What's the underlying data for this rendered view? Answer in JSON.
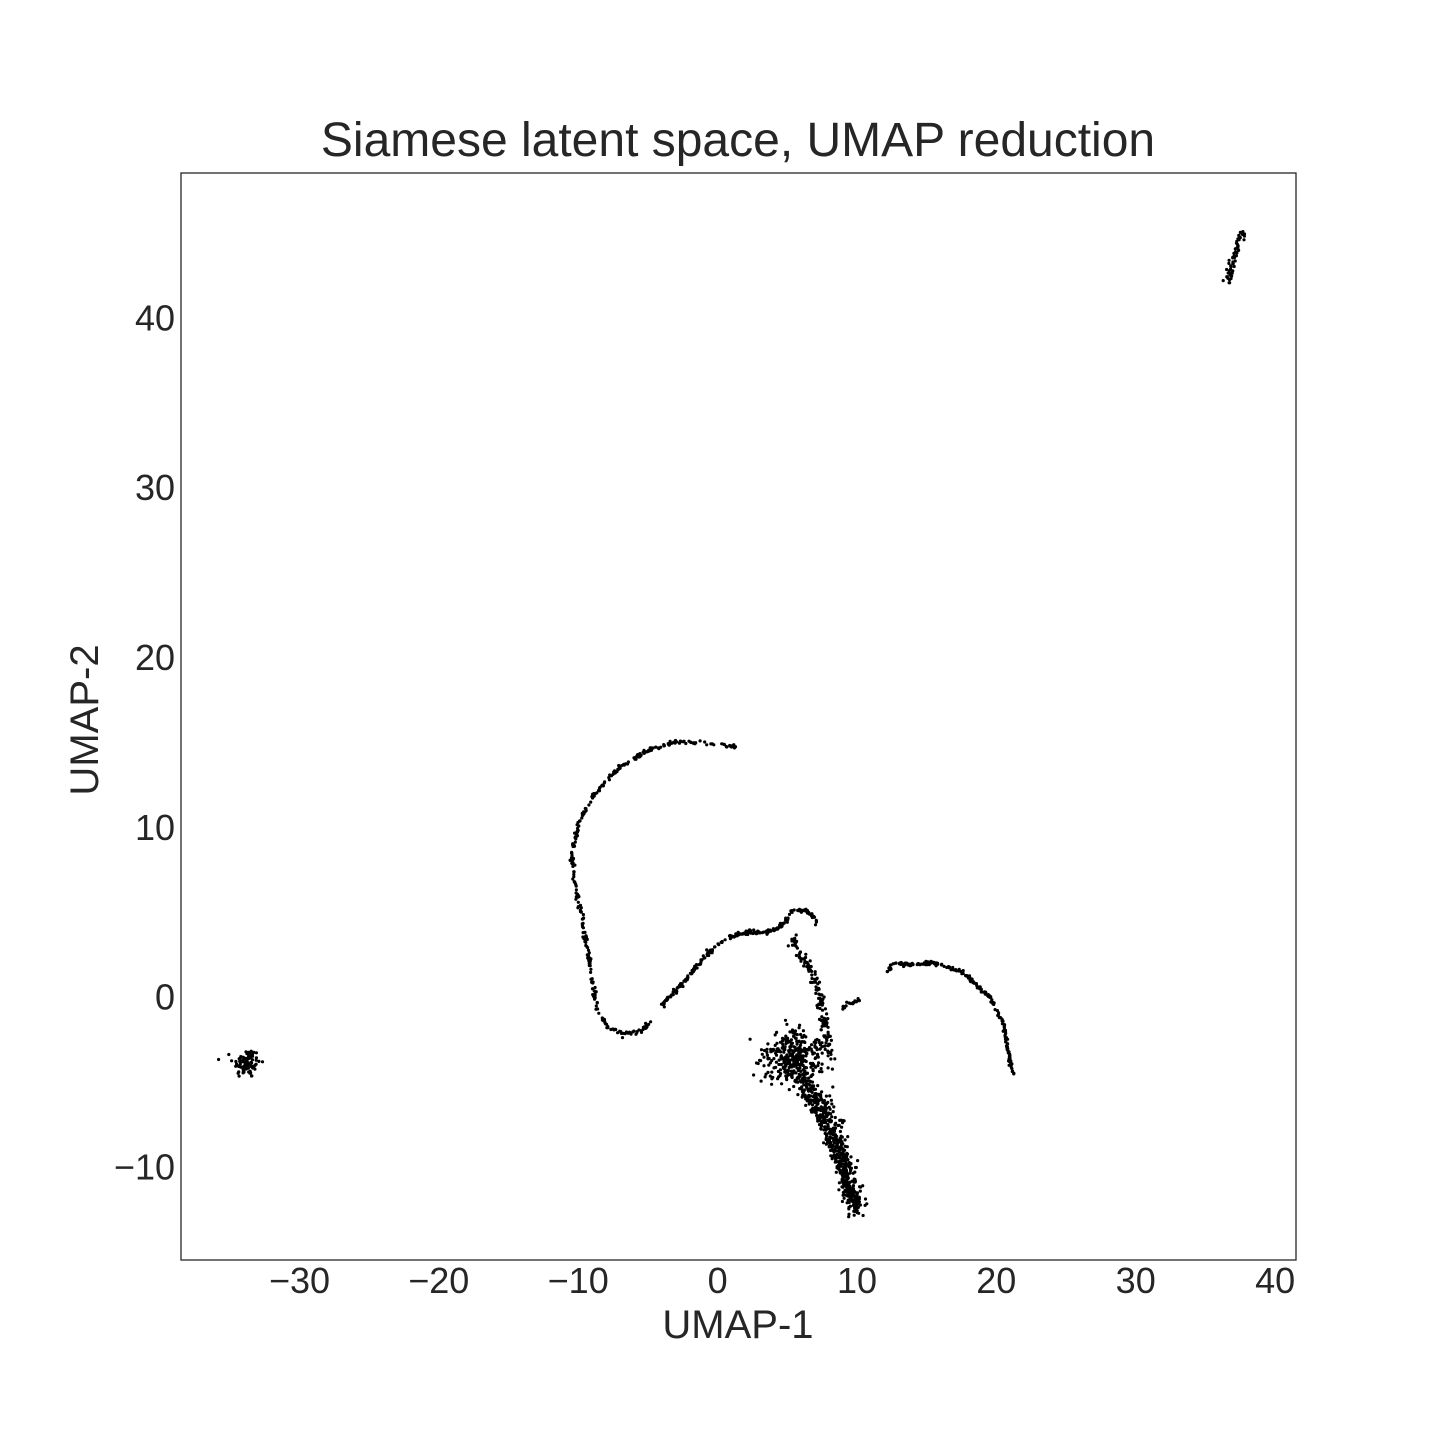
{
  "chart_data": {
    "type": "scatter",
    "title": "Siamese latent space, UMAP reduction",
    "xlabel": "UMAP-1",
    "ylabel": "UMAP-2",
    "xlim": [
      -38.5,
      41.5
    ],
    "ylim": [
      -15.5,
      48.5
    ],
    "xticks": [
      -30,
      -20,
      -10,
      0,
      10,
      20,
      30,
      40
    ],
    "yticks": [
      -10,
      0,
      10,
      20,
      30,
      40
    ],
    "xtick_labels": [
      "−30",
      "−20",
      "−10",
      "0",
      "10",
      "20",
      "30",
      "40"
    ],
    "ytick_labels": [
      "−10",
      "0",
      "10",
      "20",
      "30",
      "40"
    ],
    "grid": false,
    "point_color": "#000000",
    "series": [
      {
        "name": "upper-right-streak",
        "type": "dense-path",
        "spread": 0.25,
        "points": [
          [
            36.6,
            42.0
          ],
          [
            37.0,
            43.3
          ],
          [
            37.4,
            44.4
          ],
          [
            37.8,
            45.1
          ]
        ],
        "count": 60
      },
      {
        "name": "far-left-cluster",
        "type": "blob",
        "center": [
          -33.8,
          -3.9
        ],
        "radius": [
          0.9,
          0.8
        ],
        "count": 90
      },
      {
        "name": "big-arc",
        "type": "dense-path",
        "spread": 0.12,
        "points": [
          [
            1.4,
            14.7
          ],
          [
            0.5,
            14.8
          ],
          [
            -1.5,
            15.0
          ],
          [
            -3.0,
            15.0
          ],
          [
            -5.0,
            14.5
          ],
          [
            -7.0,
            13.5
          ],
          [
            -8.5,
            12.3
          ],
          [
            -9.8,
            10.5
          ],
          [
            -10.5,
            8.5
          ],
          [
            -10.2,
            6.5
          ],
          [
            -9.7,
            4.5
          ],
          [
            -9.3,
            2.5
          ],
          [
            -8.9,
            0.5
          ],
          [
            -8.6,
            -0.8
          ],
          [
            -7.9,
            -1.8
          ],
          [
            -6.8,
            -2.2
          ],
          [
            -5.5,
            -2.0
          ],
          [
            -4.8,
            -1.5
          ]
        ],
        "count": 340
      },
      {
        "name": "middle-curve",
        "type": "dense-path",
        "spread": 0.12,
        "points": [
          [
            -4.0,
            -0.5
          ],
          [
            -2.5,
            0.8
          ],
          [
            -1.0,
            2.3
          ],
          [
            0.5,
            3.4
          ],
          [
            2.0,
            3.8
          ],
          [
            3.5,
            3.8
          ],
          [
            4.5,
            4.1
          ],
          [
            5.3,
            5.0
          ],
          [
            6.3,
            5.1
          ],
          [
            7.1,
            4.5
          ],
          [
            7.0,
            4.2
          ]
        ],
        "count": 240
      },
      {
        "name": "right-arc",
        "type": "dense-path",
        "spread": 0.12,
        "points": [
          [
            12.2,
            1.5
          ],
          [
            12.6,
            2.0
          ],
          [
            13.5,
            1.9
          ],
          [
            15.5,
            2.0
          ],
          [
            17.5,
            1.5
          ],
          [
            19.5,
            0.0
          ],
          [
            20.5,
            -1.5
          ],
          [
            20.8,
            -3.0
          ],
          [
            21.2,
            -4.5
          ]
        ],
        "count": 220
      },
      {
        "name": "stem",
        "type": "dense-path",
        "spread": 0.3,
        "points": [
          [
            5.2,
            3.5
          ],
          [
            6.0,
            2.5
          ],
          [
            6.9,
            1.2
          ],
          [
            7.4,
            -0.2
          ],
          [
            7.7,
            -1.8
          ],
          [
            8.0,
            -3.5
          ]
        ],
        "count": 140
      },
      {
        "name": "right-stub",
        "type": "dense-path",
        "spread": 0.1,
        "points": [
          [
            8.5,
            -0.8
          ],
          [
            9.5,
            -0.4
          ],
          [
            10.2,
            -0.2
          ]
        ],
        "count": 18
      },
      {
        "name": "dense-body-left",
        "type": "blob",
        "center": [
          5.5,
          -3.6
        ],
        "radius": [
          2.0,
          1.4
        ],
        "count": 360
      },
      {
        "name": "dense-body-lower",
        "type": "dense-path",
        "spread": 0.7,
        "points": [
          [
            6.2,
            -5.0
          ],
          [
            7.5,
            -6.5
          ],
          [
            8.4,
            -8.0
          ],
          [
            9.0,
            -9.5
          ],
          [
            9.5,
            -11.0
          ],
          [
            10.0,
            -12.5
          ]
        ],
        "count": 420
      },
      {
        "name": "dense-body-bottom-edge",
        "type": "dense-path",
        "spread": 0.25,
        "points": [
          [
            6.0,
            -5.5
          ],
          [
            7.2,
            -7.0
          ],
          [
            8.3,
            -9.0
          ],
          [
            9.2,
            -11.0
          ],
          [
            10.0,
            -12.7
          ]
        ],
        "count": 160
      }
    ]
  }
}
